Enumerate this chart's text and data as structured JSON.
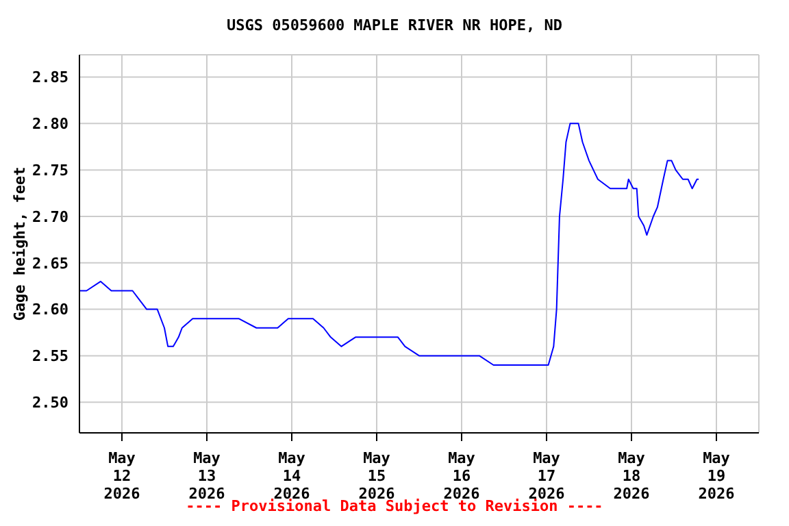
{
  "chart_data": {
    "type": "line",
    "title": "USGS 05059600 MAPLE RIVER NR HOPE, ND",
    "ylabel": "Gage height, feet",
    "annotations": [
      "---- Provisional Data Subject to Revision ----"
    ],
    "x": [
      "2026-05-11T12:00",
      "2026-05-11T14:00",
      "2026-05-11T18:00",
      "2026-05-11T21:00",
      "2026-05-12T00:00",
      "2026-05-12T03:00",
      "2026-05-12T05:00",
      "2026-05-12T07:00",
      "2026-05-12T10:00",
      "2026-05-12T12:00",
      "2026-05-12T13:00",
      "2026-05-12T14:30",
      "2026-05-12T16:00",
      "2026-05-12T17:00",
      "2026-05-12T20:00",
      "2026-05-13T00:00",
      "2026-05-13T06:00",
      "2026-05-13T09:00",
      "2026-05-13T14:00",
      "2026-05-13T20:00",
      "2026-05-13T23:00",
      "2026-05-14T02:00",
      "2026-05-14T06:00",
      "2026-05-14T09:00",
      "2026-05-14T11:00",
      "2026-05-14T14:00",
      "2026-05-14T18:00",
      "2026-05-14T22:00",
      "2026-05-15T03:00",
      "2026-05-15T06:00",
      "2026-05-15T08:00",
      "2026-05-15T12:00",
      "2026-05-15T18:00",
      "2026-05-16T00:00",
      "2026-05-16T05:00",
      "2026-05-16T09:00",
      "2026-05-16T13:00",
      "2026-05-16T17:00",
      "2026-05-16T20:00",
      "2026-05-17T00:30",
      "2026-05-17T02:00",
      "2026-05-17T02:50",
      "2026-05-17T03:40",
      "2026-05-17T04:40",
      "2026-05-17T05:30",
      "2026-05-17T06:40",
      "2026-05-17T09:00",
      "2026-05-17T10:10",
      "2026-05-17T12:00",
      "2026-05-17T14:30",
      "2026-05-17T18:00",
      "2026-05-17T22:40",
      "2026-05-17T23:10",
      "2026-05-18T00:30",
      "2026-05-18T01:30",
      "2026-05-18T02:00",
      "2026-05-18T03:30",
      "2026-05-18T04:20",
      "2026-05-18T06:10",
      "2026-05-18T07:20",
      "2026-05-18T09:00",
      "2026-05-18T10:10",
      "2026-05-18T11:20",
      "2026-05-18T12:30",
      "2026-05-18T14:30",
      "2026-05-18T16:00",
      "2026-05-18T17:10",
      "2026-05-18T18:30",
      "2026-05-18T19:00"
    ],
    "series": [
      {
        "color": "#0000ff",
        "values": [
          2.62,
          2.62,
          2.63,
          2.62,
          2.62,
          2.62,
          2.61,
          2.6,
          2.6,
          2.58,
          2.56,
          2.56,
          2.57,
          2.58,
          2.59,
          2.59,
          2.59,
          2.59,
          2.58,
          2.58,
          2.59,
          2.59,
          2.59,
          2.58,
          2.57,
          2.56,
          2.57,
          2.57,
          2.57,
          2.57,
          2.56,
          2.55,
          2.55,
          2.55,
          2.55,
          2.54,
          2.54,
          2.54,
          2.54,
          2.54,
          2.56,
          2.6,
          2.7,
          2.74,
          2.78,
          2.8,
          2.8,
          2.78,
          2.76,
          2.74,
          2.73,
          2.73,
          2.74,
          2.73,
          2.73,
          2.7,
          2.69,
          2.68,
          2.7,
          2.71,
          2.74,
          2.76,
          2.76,
          2.75,
          2.74,
          2.74,
          2.73,
          2.74,
          2.74
        ]
      }
    ],
    "xlim": [
      "2026-05-11T12:00",
      "2026-05-19T12:00"
    ],
    "xticks": [
      {
        "value": "2026-05-12",
        "label": "May 12 2026"
      },
      {
        "value": "2026-05-13",
        "label": "May 13 2026"
      },
      {
        "value": "2026-05-14",
        "label": "May 14 2026"
      },
      {
        "value": "2026-05-15",
        "label": "May 15 2026"
      },
      {
        "value": "2026-05-16",
        "label": "May 16 2026"
      },
      {
        "value": "2026-05-17",
        "label": "May 17 2026"
      },
      {
        "value": "2026-05-18",
        "label": "May 18 2026"
      },
      {
        "value": "2026-05-19",
        "label": "May 19 2026"
      }
    ],
    "ylim": [
      2.467,
      2.874
    ],
    "yticks": [
      {
        "value": 2.5,
        "label": "2.50"
      },
      2.55,
      {
        "value": 2.6,
        "label": "2.60"
      },
      2.65,
      {
        "value": 2.7,
        "label": "2.70"
      },
      2.75,
      {
        "value": 2.8,
        "label": "2.80"
      },
      2.85
    ],
    "grid": true,
    "legend": false,
    "marker": "none",
    "line_style": "solid"
  }
}
